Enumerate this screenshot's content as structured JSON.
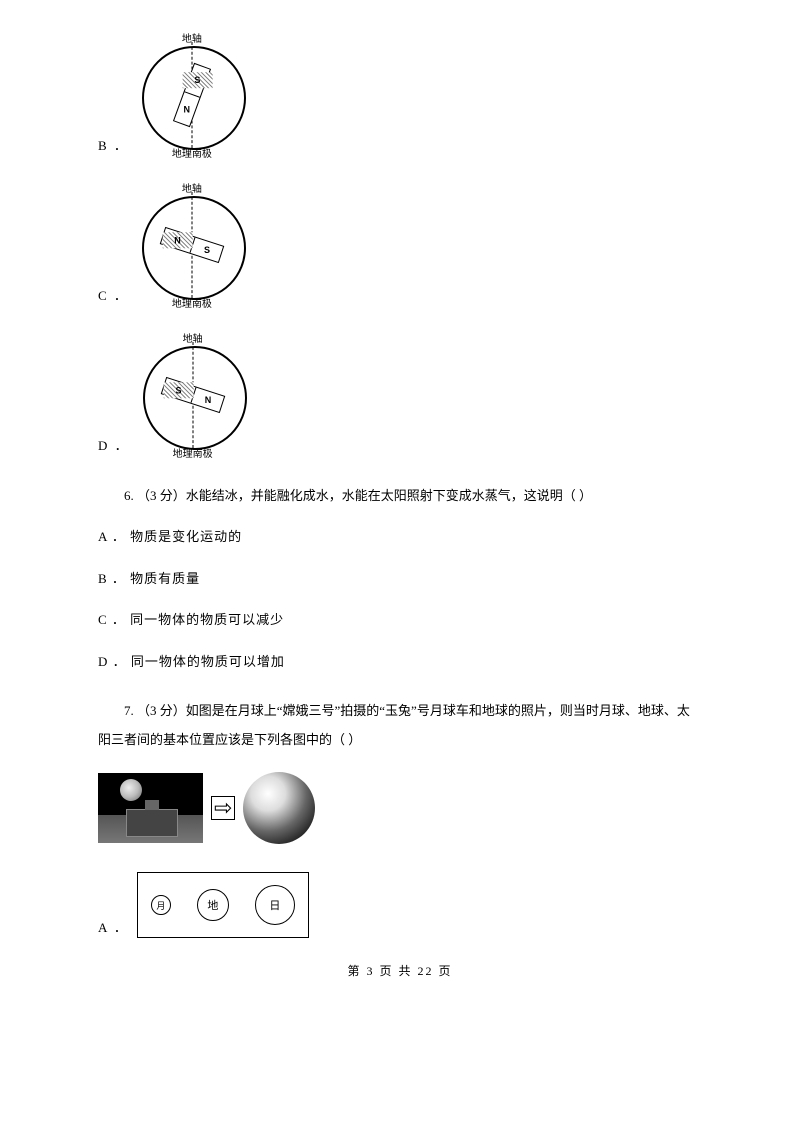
{
  "diagrams": {
    "axis_top": "地轴",
    "axis_bottom": "地理南极",
    "B": {
      "label": "B ．",
      "north": "N",
      "south": "S",
      "rotation": -70,
      "n_left": false,
      "shaded_left": false
    },
    "C": {
      "label": "C ．",
      "north": "N",
      "south": "S",
      "rotation": 18,
      "n_left": true,
      "shaded_left": false
    },
    "D": {
      "label": "D ．",
      "north": "N",
      "south": "S",
      "rotation": 18,
      "n_left": false,
      "shaded_left": true
    }
  },
  "q6": {
    "stem": "6.   （3 分）水能结冰，并能融化成水，水能在太阳照射下变成水蒸气，这说明（       ）",
    "A": "A ． 物质是变化运动的",
    "B": "B ． 物质有质量",
    "C": "C ． 同一物体的物质可以减少",
    "D": "D ． 同一物体的物质可以增加"
  },
  "q7": {
    "stem": "7.   （3 分）如图是在月球上“嫦娥三号”拍摄的“玉兔”号月球车和地球的照片，则当时月球、地球、太阳三者间的基本位置应该是下列各图中的（       ）",
    "A_label": "A ．",
    "orbit": {
      "moon": "月",
      "earth": "地",
      "sun": "日"
    }
  },
  "footer": "第 3 页 共 22 页",
  "colors": {
    "text": "#000000",
    "bg": "#ffffff",
    "border": "#000000"
  }
}
